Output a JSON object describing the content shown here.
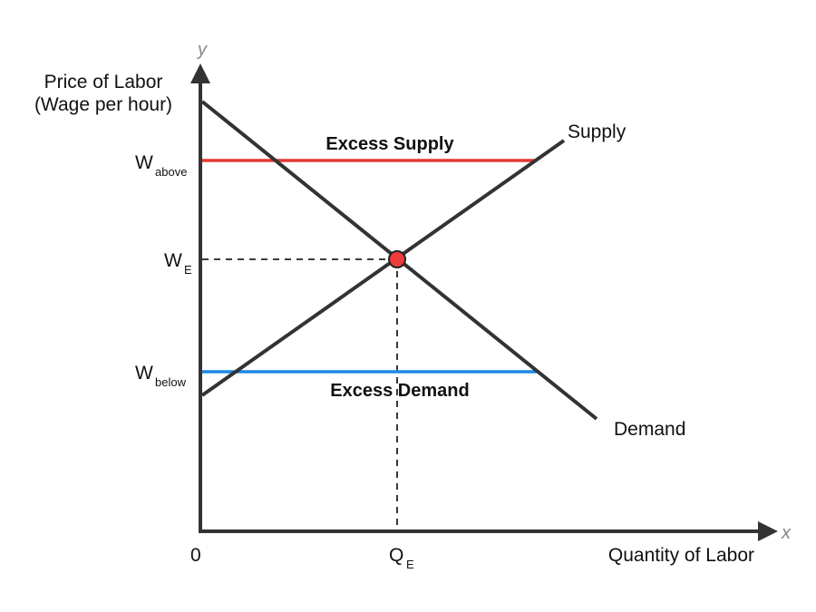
{
  "axes": {
    "y_letter": "y",
    "x_letter": "x",
    "y_title_line1": "Price of Labor",
    "y_title_line2": "(Wage per hour)",
    "x_title": "Quantity of Labor",
    "origin": "0"
  },
  "wages": {
    "above": {
      "main": "W",
      "sub": "above"
    },
    "equilibrium": {
      "main": "W",
      "sub": "E"
    },
    "below": {
      "main": "W",
      "sub": "below"
    }
  },
  "quantity": {
    "main": "Q",
    "sub": "E"
  },
  "curves": {
    "supply": "Supply",
    "demand": "Demand"
  },
  "regions": {
    "excess_supply": "Excess Supply",
    "excess_demand": "Excess Demand"
  },
  "colors": {
    "curve": "#333333",
    "excess_supply_line": "#e53935",
    "excess_demand_line": "#1e88e5",
    "equilibrium_point": "#f03a3a"
  }
}
